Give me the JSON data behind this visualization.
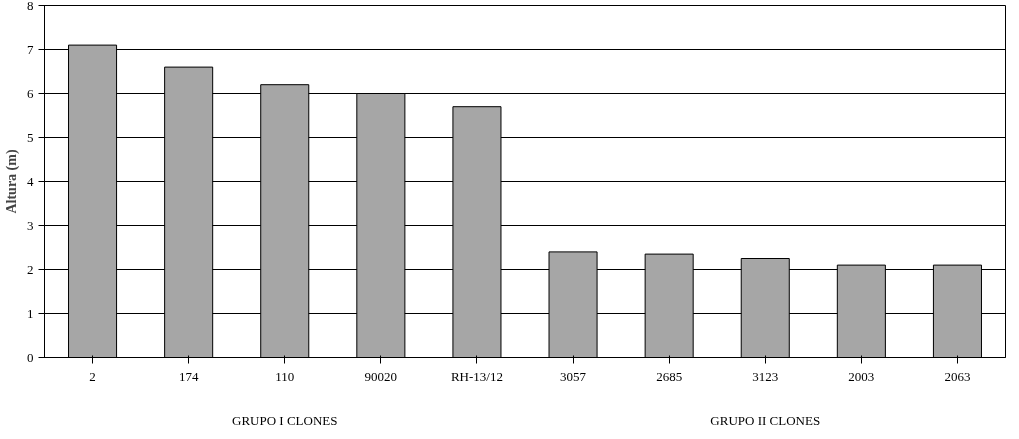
{
  "chart_data": {
    "type": "bar",
    "ylabel": "Altura (m)",
    "categories": [
      "2",
      "174",
      "110",
      "90020",
      "RH-13/12",
      "3057",
      "2685",
      "3123",
      "2003",
      "2063"
    ],
    "values": [
      7.1,
      6.6,
      6.2,
      6.0,
      5.7,
      2.4,
      2.35,
      2.25,
      2.1,
      2.1
    ],
    "color": "#a6a6a6",
    "ylim": [
      0,
      8
    ],
    "yticks": [
      0,
      1,
      2,
      3,
      4,
      5,
      6,
      7,
      8
    ],
    "grid": "y",
    "annotations": [
      "GRUPO I CLONES",
      "GRUPO II CLONES"
    ]
  }
}
